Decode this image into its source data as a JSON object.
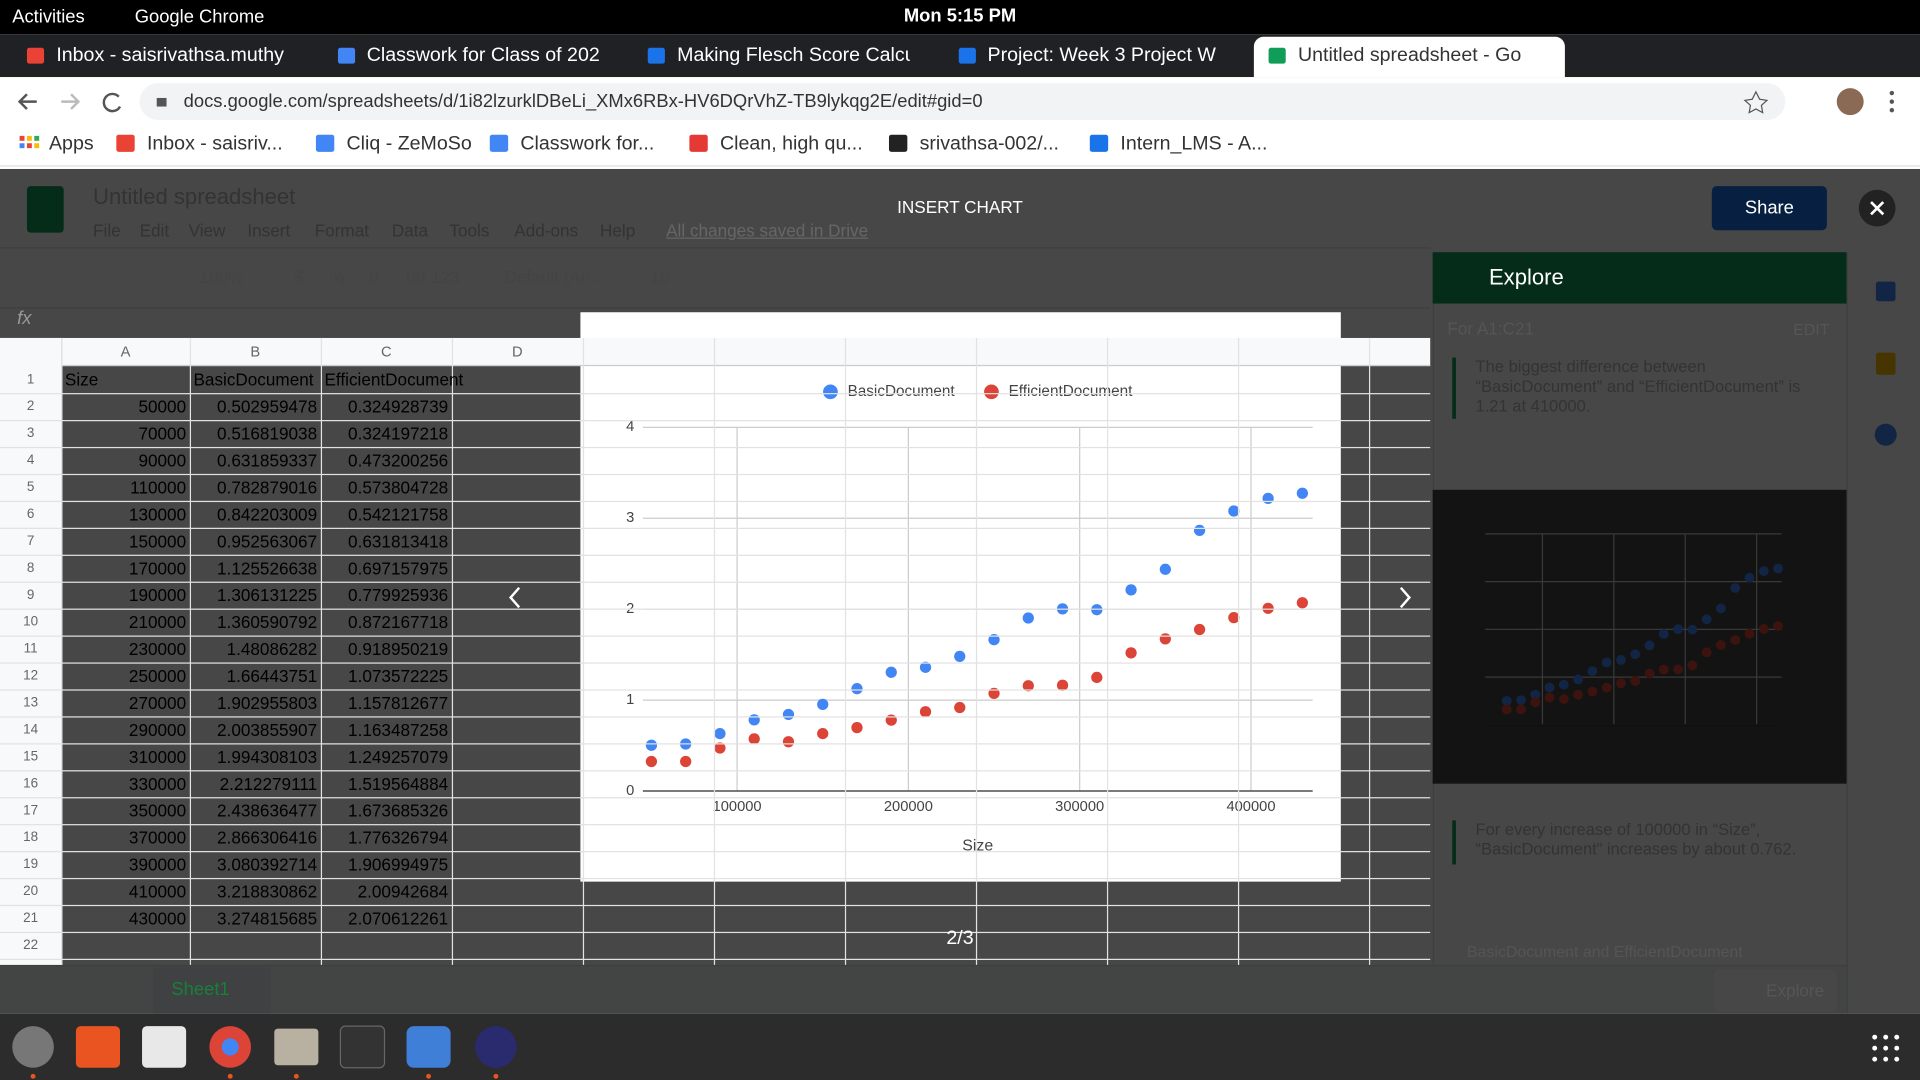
{
  "top_bar": {
    "activities": "Activities",
    "app": "Google Chrome",
    "clock": "Mon  5:15 PM"
  },
  "tabs": [
    "Inbox - saisrivathsa.muthy",
    "Classwork for Class of 202",
    "Making Flesch Score Calcu",
    "Project: Week 3 Project W",
    "Untitled spreadsheet - Go"
  ],
  "url": "docs.google.com/spreadsheets/d/1i82lzurklDBeLi_XMx6RBx-HV6DQrVhZ-TB9lykqg2E/edit#gid=0",
  "bookmarks": [
    "Apps",
    "Inbox - saisriv...",
    "Cliq - ZeMoSo",
    "Classwork for...",
    "Clean, high qu...",
    "srivathsa-002/...",
    "Intern_LMS - A..."
  ],
  "sheet": {
    "doc_title": "Untitled spreadsheet",
    "menu": [
      "File",
      "Edit",
      "View",
      "Insert",
      "Format",
      "Data",
      "Tools",
      "Add-ons",
      "Help"
    ],
    "saved": "All changes saved in Drive",
    "share": "Share",
    "toolbar": [
      "100%",
      "$",
      "%",
      ".0",
      ".00",
      "123",
      "Default (Ari...",
      "10"
    ],
    "fx": "fx",
    "columns": [
      "A",
      "B",
      "C",
      "D"
    ],
    "row_numbers": [
      1,
      2,
      3,
      4,
      5,
      6,
      7,
      8,
      9,
      10,
      11,
      12,
      13,
      14,
      15,
      16,
      17,
      18,
      19,
      20,
      21,
      22
    ],
    "rows": [
      [
        "Size",
        "BasicDocument",
        "EfficientDocument"
      ],
      [
        50000,
        0.502959478,
        0.324928739
      ],
      [
        70000,
        0.516819038,
        0.324197218
      ],
      [
        90000,
        0.631859337,
        0.473200256
      ],
      [
        110000,
        0.782879016,
        0.573804728
      ],
      [
        130000,
        0.842203009,
        0.542121758
      ],
      [
        150000,
        0.952563067,
        0.631813418
      ],
      [
        170000,
        1.125526638,
        0.697157975
      ],
      [
        190000,
        1.306131225,
        0.779925936
      ],
      [
        210000,
        1.360590792,
        0.872167718
      ],
      [
        230000,
        1.48086282,
        0.918950219
      ],
      [
        250000,
        1.66443751,
        1.073572225
      ],
      [
        270000,
        1.902955803,
        1.157812677
      ],
      [
        290000,
        2.003855907,
        1.163487258
      ],
      [
        310000,
        1.994308103,
        1.249257079
      ],
      [
        330000,
        2.212279111,
        1.519564884
      ],
      [
        350000,
        2.438636477,
        1.673685326
      ],
      [
        370000,
        2.866306416,
        1.776326794
      ],
      [
        390000,
        3.080392714,
        1.906994975
      ],
      [
        410000,
        3.218830862,
        2.00942684
      ],
      [
        430000,
        3.274815685,
        2.070612261
      ]
    ],
    "tab": "Sheet1"
  },
  "dialog": {
    "title": "INSERT CHART",
    "pager": "2/3"
  },
  "explore": {
    "title": "Explore",
    "range": "For A1:C21",
    "edit": "EDIT",
    "insight_1": "The biggest difference between “BasicDocument” and “EfficientDocument” is 1.21 at 410000.",
    "insight_2": "For every increase of 100000 in “Size”, “BasicDocument” increases by about 0.762.",
    "card_3_title": "BasicDocument and EfficientDocument",
    "button": "Explore"
  },
  "chart_data": [
    {
      "type": "scatter",
      "title": "BasicDocument and EfficientDocument",
      "x_label": "Size",
      "legend": "top",
      "x": [
        50000,
        70000,
        90000,
        110000,
        130000,
        150000,
        170000,
        190000,
        210000,
        230000,
        250000,
        270000,
        290000,
        310000,
        330000,
        350000,
        370000,
        390000,
        410000,
        430000
      ],
      "series": [
        {
          "name": "BasicDocument",
          "color": "#4285f4",
          "values": [
            0.502959478,
            0.516819038,
            0.631859337,
            0.782879016,
            0.842203009,
            0.952563067,
            1.125526638,
            1.306131225,
            1.360590792,
            1.48086282,
            1.66443751,
            1.902955803,
            2.003855907,
            1.994308103,
            2.212279111,
            2.438636477,
            2.866306416,
            3.080392714,
            3.218830862,
            3.274815685
          ]
        },
        {
          "name": "EfficientDocument",
          "color": "#db4437",
          "values": [
            0.324928739,
            0.324197218,
            0.473200256,
            0.573804728,
            0.542121758,
            0.631813418,
            0.697157975,
            0.779925936,
            0.872167718,
            0.918950219,
            1.073572225,
            1.157812677,
            1.163487258,
            1.249257079,
            1.519564884,
            1.673685326,
            1.776326794,
            1.906994975,
            2.00942684,
            2.070612261
          ]
        }
      ],
      "xlim": [
        45000,
        436000
      ],
      "xticks": [
        100000,
        200000,
        300000,
        400000
      ],
      "ylim": [
        0,
        4
      ],
      "yticks": [
        0,
        1,
        2,
        3,
        4
      ],
      "grid": true
    },
    {
      "type": "scatter",
      "title": "BasicDocument and EfficientDocument",
      "x_label": "Size",
      "x": [
        50000,
        70000,
        90000,
        110000,
        130000,
        150000,
        170000,
        190000,
        210000,
        230000,
        250000,
        270000,
        290000,
        310000,
        330000,
        350000,
        370000,
        390000,
        410000,
        430000
      ],
      "series": [
        {
          "color": "#4285f4",
          "values": [
            0.502959478,
            0.516819038,
            0.631859337,
            0.782879016,
            0.842203009,
            0.952563067,
            1.125526638,
            1.306131225,
            1.360590792,
            1.48086282,
            1.66443751,
            1.902955803,
            2.003855907,
            1.994308103,
            2.212279111,
            2.438636477,
            2.866306416,
            3.080392714,
            3.218830862,
            3.274815685
          ]
        },
        {
          "color": "#db4437",
          "values": [
            0.324928739,
            0.324197218,
            0.473200256,
            0.573804728,
            0.542121758,
            0.631813418,
            0.697157975,
            0.779925936,
            0.872167718,
            0.918950219,
            1.073572225,
            1.157812677,
            1.163487258,
            1.249257079,
            1.519564884,
            1.673685326,
            1.776326794,
            1.906994975,
            2.00942684,
            2.070612261
          ]
        }
      ],
      "xlim": [
        20000,
        435000
      ],
      "xticks": [
        100000,
        200000,
        300000,
        400000
      ],
      "ylim": [
        0,
        4
      ],
      "yticks": [
        0,
        1,
        2,
        3,
        4
      ],
      "grid": true
    }
  ]
}
